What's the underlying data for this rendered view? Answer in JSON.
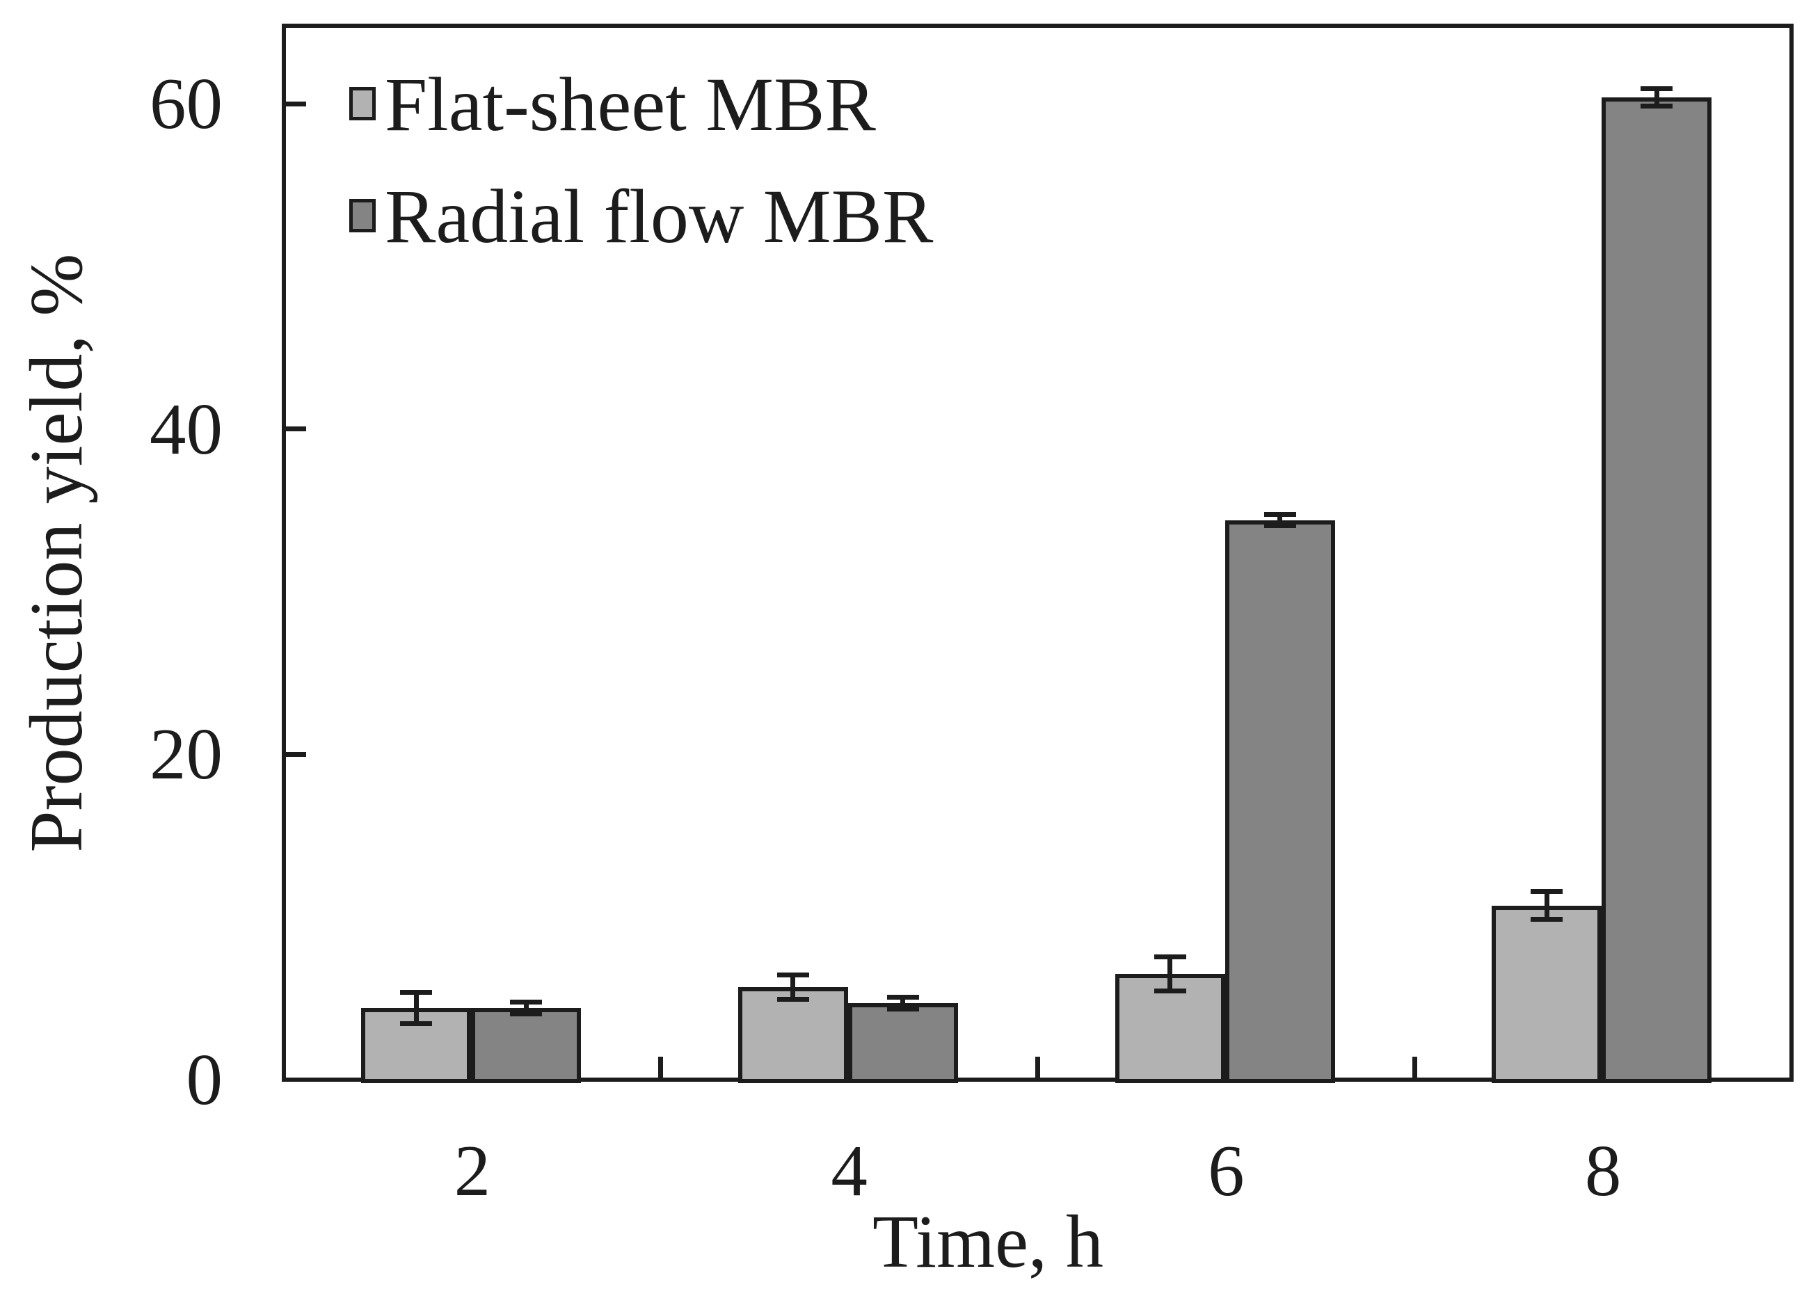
{
  "chart_data": {
    "type": "bar",
    "title": "",
    "categories": [
      "2",
      "4",
      "6",
      "8"
    ],
    "series": [
      {
        "name": "Flat-sheet MBR",
        "color": "#b2b2b2",
        "values": [
          4.4,
          5.7,
          6.5,
          10.7
        ],
        "errors": [
          1.1,
          0.9,
          1.2,
          1.0
        ]
      },
      {
        "name": "Radial flow MBR",
        "color": "#848484",
        "values": [
          4.4,
          4.7,
          34.4,
          60.4
        ],
        "errors": [
          0.5,
          0.5,
          0.5,
          0.7
        ]
      }
    ],
    "xlabel": "Time, h",
    "ylabel": "Production yield, %",
    "ylim": [
      0,
      64.8
    ],
    "yticks": [
      0,
      20,
      40,
      60
    ],
    "grid": false,
    "legend_position": "top-left-inside",
    "error_bars": true,
    "outline_color": "#1c1c1c",
    "background_color": "#ffffff"
  }
}
